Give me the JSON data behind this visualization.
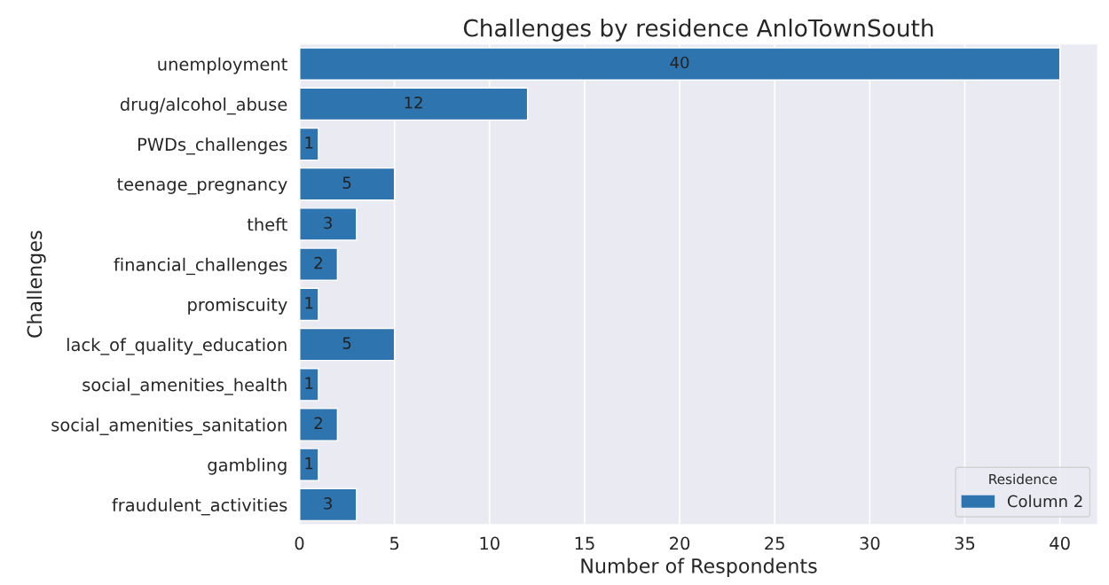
{
  "chart_data": {
    "type": "bar",
    "orientation": "horizontal",
    "title": "Challenges by residence AnloTownSouth",
    "xlabel": "Number of Respondents",
    "ylabel": "Challenges",
    "legend_title": "Residence",
    "categories": [
      "unemployment",
      "drug/alcohol_abuse",
      "PWDs_challenges",
      "teenage_pregnancy",
      "theft",
      "financial_challenges",
      "promiscuity",
      "lack_of_quality_education",
      "social_amenities_health",
      "social_amenities_sanitation",
      "gambling",
      "fraudulent_activities"
    ],
    "series": [
      {
        "name": "Column 2",
        "color": "#2e75b0",
        "values": [
          40,
          12,
          1,
          5,
          3,
          2,
          1,
          5,
          1,
          2,
          1,
          3
        ]
      }
    ],
    "xlim": [
      0,
      42
    ],
    "xticks": [
      0,
      5,
      10,
      15,
      20,
      25,
      30,
      35,
      40
    ],
    "grid": "x",
    "legend": "bottom right",
    "data_labels": true
  }
}
